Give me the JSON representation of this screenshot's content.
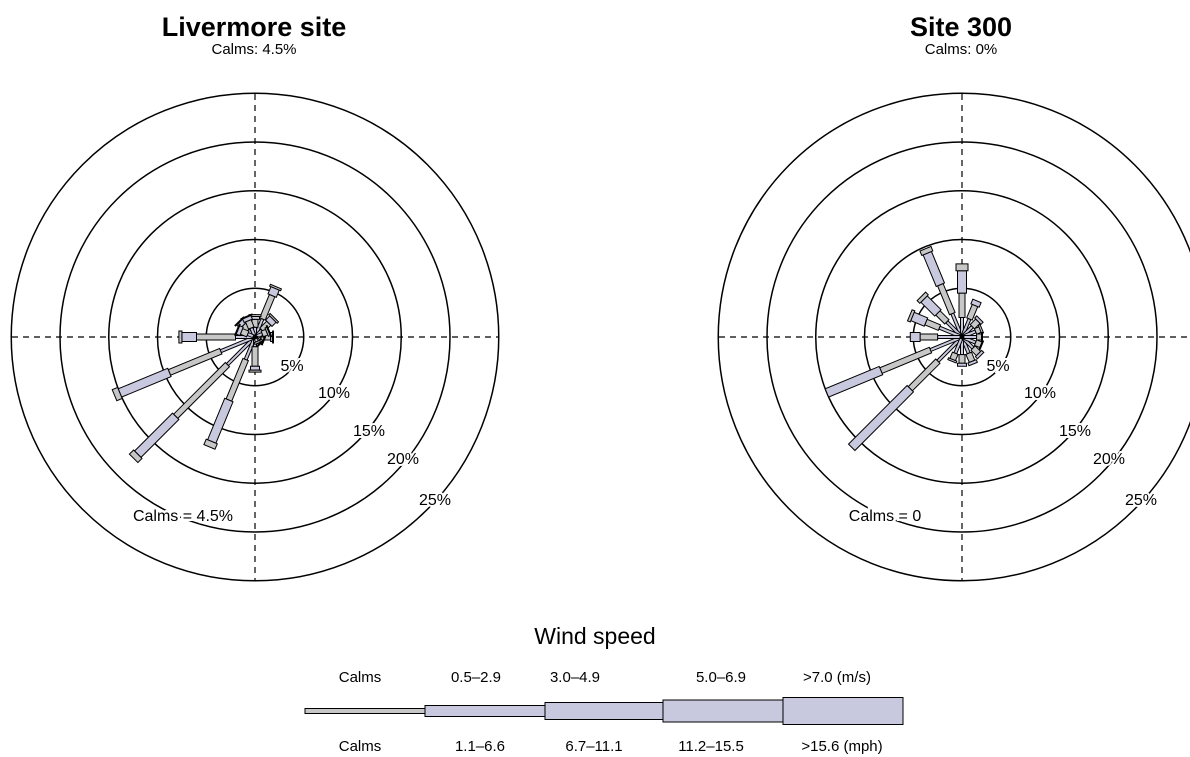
{
  "chart_data": [
    {
      "type": "wind-rose",
      "title": "Livermore site",
      "subtitle": "Calms: 4.5%",
      "calms_label": "Calms = 4.5%",
      "ring_labels": [
        "5%",
        "10%",
        "15%",
        "20%",
        "25%"
      ],
      "rings": [
        5,
        10,
        15,
        20,
        25
      ],
      "directions_deg": [
        0,
        22.5,
        45,
        67.5,
        90,
        112.5,
        135,
        157.5,
        180,
        202.5,
        225,
        247.5,
        270,
        292.5,
        315,
        337.5
      ],
      "speed_classes": [
        "0.5–2.9",
        "3.0–4.9",
        "5.0–6.9",
        ">7.0"
      ],
      "frequencies": [
        [
          1.0,
          0.8,
          0.3,
          0.2
        ],
        [
          2.0,
          2.6,
          0.8,
          0.2
        ],
        [
          1.0,
          1.0,
          0.6,
          0.2
        ],
        [
          0.8,
          0.5,
          0.2,
          0.1
        ],
        [
          1.0,
          0.6,
          0.2,
          0.1
        ],
        [
          0.6,
          0.3,
          0.1,
          0.0
        ],
        [
          0.6,
          0.2,
          0.1,
          0.0
        ],
        [
          0.5,
          0.2,
          0.0,
          0.0
        ],
        [
          1.0,
          2.0,
          0.4,
          0.2
        ],
        [
          2.5,
          4.5,
          4.6,
          0.6
        ],
        [
          4.0,
          7.5,
          5.5,
          0.6
        ],
        [
          3.8,
          5.7,
          5.5,
          0.6
        ],
        [
          2.0,
          4.0,
          1.5,
          0.3
        ],
        [
          0.8,
          0.7,
          0.4,
          0.1
        ],
        [
          1.0,
          0.7,
          0.5,
          0.1
        ],
        [
          1.0,
          0.8,
          0.4,
          0.1
        ]
      ]
    },
    {
      "type": "wind-rose",
      "title": "Site 300",
      "subtitle": "Calms: 0%",
      "calms_label": "Calms = 0",
      "ring_labels": [
        "5%",
        "10%",
        "15%",
        "20%",
        "25%"
      ],
      "rings": [
        5,
        10,
        15,
        20,
        25
      ],
      "directions_deg": [
        0,
        22.5,
        45,
        67.5,
        90,
        112.5,
        135,
        157.5,
        180,
        202.5,
        225,
        247.5,
        270,
        292.5,
        315,
        337.5
      ],
      "speed_classes": [
        "0.5–2.9",
        "3.0–4.9",
        "5.0–6.9",
        ">7.0"
      ],
      "frequencies": [
        [
          2.0,
          2.5,
          2.3,
          0.7
        ],
        [
          2.0,
          1.5,
          0.5,
          0.0
        ],
        [
          1.5,
          0.8,
          0.3,
          0.0
        ],
        [
          1.5,
          0.5,
          0.2,
          0.0
        ],
        [
          1.5,
          0.5,
          0.1,
          0.0
        ],
        [
          1.5,
          0.6,
          0.1,
          0.0
        ],
        [
          1.6,
          0.8,
          0.3,
          0.0
        ],
        [
          1.8,
          0.9,
          0.3,
          0.0
        ],
        [
          1.8,
          0.9,
          0.3,
          0.0
        ],
        [
          1.8,
          0.7,
          0.2,
          0.0
        ],
        [
          3.5,
          4.0,
          8.5,
          0.0
        ],
        [
          3.5,
          5.5,
          6.0,
          0.0
        ],
        [
          2.5,
          1.8,
          1.0,
          0.0
        ],
        [
          2.5,
          1.5,
          1.5,
          0.3
        ],
        [
          2.2,
          1.3,
          2.0,
          0.4
        ],
        [
          2.6,
          3.2,
          3.5,
          0.5
        ]
      ]
    }
  ],
  "legend": {
    "title": "Wind speed",
    "ms_labels": [
      "Calms",
      "0.5–2.9",
      "3.0–4.9",
      "5.0–6.9",
      ">7.0 (m/s)"
    ],
    "mph_labels": [
      "Calms",
      "1.1–6.6",
      "6.7–11.1",
      "11.2–15.5",
      ">15.6 (mph)"
    ]
  },
  "colors": {
    "fill_a": "#c8c8de",
    "fill_b": "#c7c7c7",
    "stroke": "#000000"
  }
}
